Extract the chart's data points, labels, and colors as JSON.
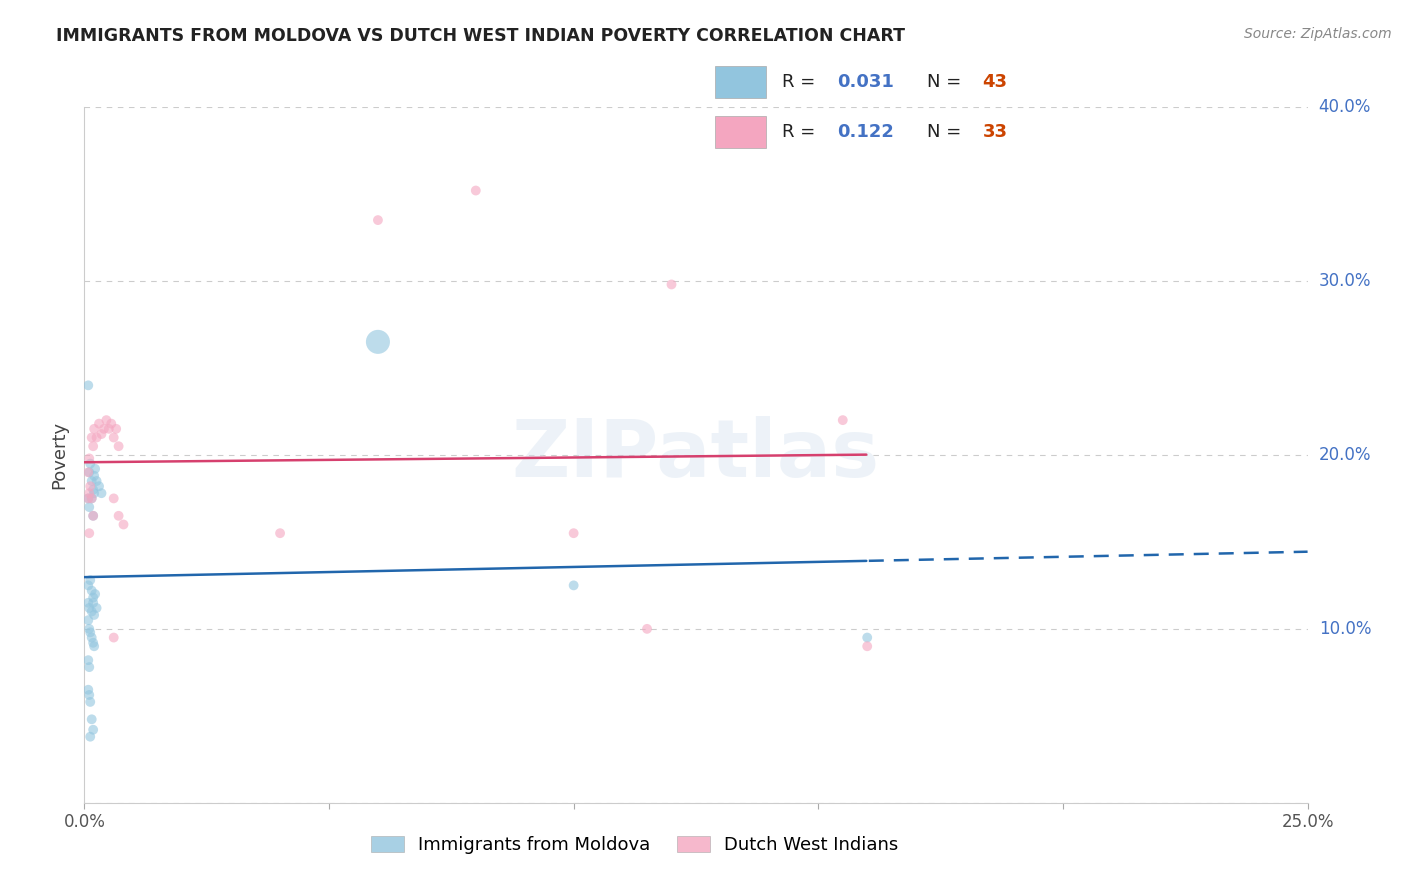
{
  "title": "IMMIGRANTS FROM MOLDOVA VS DUTCH WEST INDIAN POVERTY CORRELATION CHART",
  "source": "Source: ZipAtlas.com",
  "ylabel": "Poverty",
  "watermark": "ZIPatlas",
  "legend_blue_r": "0.031",
  "legend_blue_n": "43",
  "legend_pink_r": "0.122",
  "legend_pink_n": "33",
  "xlim": [
    0.0,
    0.25
  ],
  "ylim": [
    0.0,
    0.4
  ],
  "xticks": [
    0.0,
    0.05,
    0.1,
    0.15,
    0.2,
    0.25
  ],
  "yticks": [
    0.0,
    0.1,
    0.2,
    0.3,
    0.4
  ],
  "xticklabels": [
    "0.0%",
    "",
    "",
    "",
    "",
    "25.0%"
  ],
  "yticklabels_right": [
    "",
    "10.0%",
    "20.0%",
    "30.0%",
    "40.0%"
  ],
  "blue_color": "#92c5de",
  "pink_color": "#f4a6c0",
  "blue_line_color": "#2166ac",
  "pink_line_color": "#d6406e",
  "text_dark": "#222222",
  "text_blue": "#4472C4",
  "text_orange": "#cc4400",
  "grid_color": "#cccccc",
  "blue_scatter": [
    [
      0.0008,
      0.24
    ],
    [
      0.001,
      0.19
    ],
    [
      0.0012,
      0.195
    ],
    [
      0.0015,
      0.185
    ],
    [
      0.0018,
      0.18
    ],
    [
      0.002,
      0.188
    ],
    [
      0.0022,
      0.192
    ],
    [
      0.0008,
      0.175
    ],
    [
      0.001,
      0.17
    ],
    [
      0.0015,
      0.175
    ],
    [
      0.0018,
      0.165
    ],
    [
      0.002,
      0.178
    ],
    [
      0.0025,
      0.185
    ],
    [
      0.003,
      0.182
    ],
    [
      0.0035,
      0.178
    ],
    [
      0.0008,
      0.125
    ],
    [
      0.0012,
      0.128
    ],
    [
      0.0015,
      0.122
    ],
    [
      0.0018,
      0.118
    ],
    [
      0.0022,
      0.12
    ],
    [
      0.0008,
      0.115
    ],
    [
      0.001,
      0.112
    ],
    [
      0.0015,
      0.11
    ],
    [
      0.0018,
      0.115
    ],
    [
      0.002,
      0.108
    ],
    [
      0.0025,
      0.112
    ],
    [
      0.0008,
      0.105
    ],
    [
      0.001,
      0.1
    ],
    [
      0.0012,
      0.098
    ],
    [
      0.0015,
      0.095
    ],
    [
      0.0018,
      0.092
    ],
    [
      0.002,
      0.09
    ],
    [
      0.0008,
      0.082
    ],
    [
      0.001,
      0.078
    ],
    [
      0.0008,
      0.065
    ],
    [
      0.001,
      0.062
    ],
    [
      0.0012,
      0.058
    ],
    [
      0.0015,
      0.048
    ],
    [
      0.0018,
      0.042
    ],
    [
      0.0012,
      0.038
    ],
    [
      0.06,
      0.265
    ],
    [
      0.1,
      0.125
    ],
    [
      0.16,
      0.095
    ]
  ],
  "pink_scatter": [
    [
      0.0008,
      0.19
    ],
    [
      0.001,
      0.198
    ],
    [
      0.0015,
      0.21
    ],
    [
      0.0018,
      0.205
    ],
    [
      0.002,
      0.215
    ],
    [
      0.0025,
      0.21
    ],
    [
      0.003,
      0.218
    ],
    [
      0.0035,
      0.212
    ],
    [
      0.004,
      0.215
    ],
    [
      0.0045,
      0.22
    ],
    [
      0.005,
      0.215
    ],
    [
      0.0055,
      0.218
    ],
    [
      0.006,
      0.21
    ],
    [
      0.0065,
      0.215
    ],
    [
      0.007,
      0.205
    ],
    [
      0.0008,
      0.175
    ],
    [
      0.001,
      0.178
    ],
    [
      0.0012,
      0.182
    ],
    [
      0.0015,
      0.175
    ],
    [
      0.0018,
      0.165
    ],
    [
      0.006,
      0.175
    ],
    [
      0.007,
      0.165
    ],
    [
      0.001,
      0.155
    ],
    [
      0.008,
      0.16
    ],
    [
      0.08,
      0.352
    ],
    [
      0.06,
      0.335
    ],
    [
      0.12,
      0.298
    ],
    [
      0.155,
      0.22
    ],
    [
      0.16,
      0.09
    ],
    [
      0.1,
      0.155
    ],
    [
      0.115,
      0.1
    ],
    [
      0.006,
      0.095
    ],
    [
      0.04,
      0.155
    ]
  ],
  "blue_scatter_sizes": [
    50,
    50,
    50,
    50,
    50,
    50,
    50,
    50,
    50,
    50,
    50,
    50,
    50,
    50,
    50,
    50,
    50,
    50,
    50,
    50,
    50,
    50,
    50,
    50,
    50,
    50,
    50,
    50,
    50,
    50,
    50,
    50,
    50,
    50,
    50,
    50,
    50,
    50,
    50,
    50,
    300,
    50,
    50
  ],
  "pink_scatter_sizes": [
    50,
    50,
    50,
    50,
    50,
    50,
    50,
    50,
    50,
    50,
    50,
    50,
    50,
    50,
    50,
    50,
    50,
    50,
    50,
    50,
    50,
    50,
    50,
    50,
    50,
    50,
    50,
    50,
    50,
    50,
    50,
    50,
    50
  ]
}
